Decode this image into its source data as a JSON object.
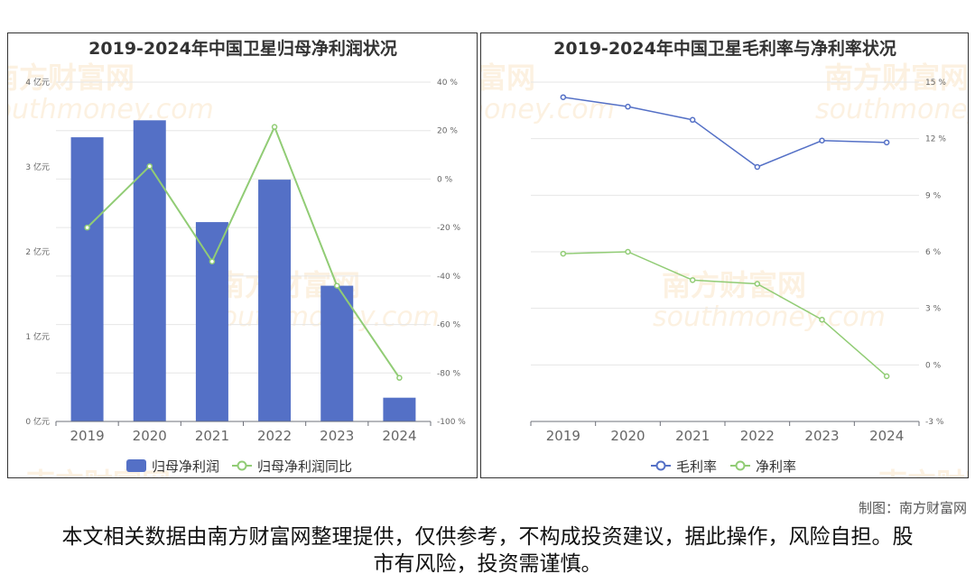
{
  "watermark": {
    "cn": "南方财富网",
    "en": "southmoney.com"
  },
  "credit": "制图：南方财富网",
  "disclaimer": "本文相关数据由南方财富网整理提供，仅供参考，不构成投资建议，据此操作，风险自担。股市有风险，投资需谨慎。",
  "colors": {
    "bar": "#5470c6",
    "line_green": "#91cc75",
    "line_blue": "#5470c6"
  },
  "chart_data": [
    {
      "type": "bar",
      "title": "2019-2024年中国卫星归母净利润状况",
      "categories": [
        "2019",
        "2020",
        "2021",
        "2022",
        "2023",
        "2024"
      ],
      "y_left": {
        "ticks": [
          "0 亿元",
          "1 亿元",
          "2 亿元",
          "3 亿元",
          "4 亿元"
        ],
        "ylim": [
          0,
          4
        ]
      },
      "y_right": {
        "ticks": [
          "-100 %",
          "-80 %",
          "-60 %",
          "-40 %",
          "-20 %",
          "0 %",
          "20 %",
          "40 %"
        ],
        "ylim": [
          -100,
          40
        ]
      },
      "series": [
        {
          "name": "归母净利润",
          "type": "bar",
          "axis": "left",
          "values": [
            3.35,
            3.55,
            2.35,
            2.85,
            1.6,
            0.28
          ]
        },
        {
          "name": "归母净利润同比",
          "type": "line",
          "axis": "right",
          "values": [
            -20,
            5.3,
            -34,
            21.5,
            -44,
            -82
          ]
        }
      ],
      "legend_position": "bottom-center"
    },
    {
      "type": "line",
      "title": "2019-2024年中国卫星毛利率与净利率状况",
      "categories": [
        "2019",
        "2020",
        "2021",
        "2022",
        "2023",
        "2024"
      ],
      "y": {
        "ticks": [
          "-3 %",
          "0 %",
          "3 %",
          "6 %",
          "9 %",
          "12 %",
          "15 %"
        ],
        "ylim": [
          -3,
          15
        ]
      },
      "series": [
        {
          "name": "毛利率",
          "values": [
            14.2,
            13.7,
            13.0,
            10.5,
            11.9,
            11.8
          ]
        },
        {
          "name": "净利率",
          "values": [
            5.9,
            6.0,
            4.5,
            4.3,
            2.4,
            -0.6
          ]
        }
      ],
      "legend_position": "bottom-center"
    }
  ]
}
